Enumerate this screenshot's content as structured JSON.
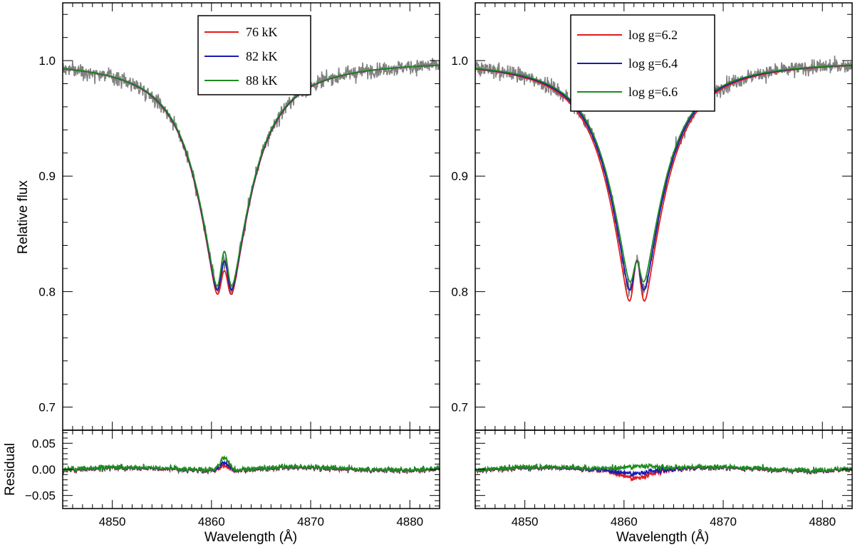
{
  "chart_data": [
    {
      "type": "line",
      "panel": "left-main",
      "ylabel": "Relative flux",
      "xlim": [
        4845,
        4883
      ],
      "ylim": [
        0.68,
        1.05
      ],
      "yticks": [
        0.7,
        0.8,
        0.9,
        1.0
      ],
      "ytick_labels": [
        "0.7",
        "0.8",
        "0.9",
        "1.0"
      ],
      "legend": {
        "placement": "top-center"
      },
      "observed": {
        "color": "#808080",
        "noise": 0.006
      },
      "series": [
        {
          "name": "76 kK",
          "color": "#e31a1c",
          "params": {
            "depth": 0.235,
            "core": 0.818
          }
        },
        {
          "name": "82 kK",
          "color": "#1a1ab5",
          "params": {
            "depth": 0.232,
            "core": 0.826
          }
        },
        {
          "name": "88 kK",
          "color": "#1f8a1f",
          "params": {
            "depth": 0.229,
            "core": 0.834
          }
        }
      ]
    },
    {
      "type": "line",
      "panel": "right-main",
      "xlim": [
        4845,
        4883
      ],
      "ylim": [
        0.68,
        1.05
      ],
      "yticks": [
        0.7,
        0.8,
        0.9,
        1.0
      ],
      "ytick_labels": [
        "0.7",
        "0.8",
        "0.9",
        "1.0"
      ],
      "legend": {
        "placement": "top-center"
      },
      "observed": {
        "color": "#808080",
        "noise": 0.006
      },
      "series": [
        {
          "name": "log g=6.2",
          "color": "#e31a1c",
          "params": {
            "depth": 0.245,
            "core": 0.826
          }
        },
        {
          "name": "log g=6.4",
          "color": "#1a1ab5",
          "params": {
            "depth": 0.232,
            "core": 0.826
          }
        },
        {
          "name": "log g=6.6",
          "color": "#1f8a1f",
          "params": {
            "depth": 0.222,
            "core": 0.826
          }
        }
      ]
    },
    {
      "type": "line",
      "panel": "left-residual",
      "xlabel": "Wavelength (Å)",
      "ylabel": "Residual",
      "xlim": [
        4845,
        4883
      ],
      "ylim": [
        -0.075,
        0.075
      ],
      "xticks": [
        4850,
        4860,
        4870,
        4880
      ],
      "xtick_labels": [
        "4850",
        "4860",
        "4870",
        "4880"
      ],
      "yticks": [
        -0.05,
        0.0,
        0.05
      ],
      "ytick_labels": [
        "−0.05",
        "0.00",
        "0.05"
      ],
      "series": [
        {
          "color": "#e31a1c",
          "params": {
            "bump": 0.01
          }
        },
        {
          "color": "#1a1ab5",
          "params": {
            "bump": 0.015
          }
        },
        {
          "color": "#1f8a1f",
          "params": {
            "bump": 0.024
          }
        }
      ]
    },
    {
      "type": "line",
      "panel": "right-residual",
      "xlabel": "Wavelength (Å)",
      "xlim": [
        4845,
        4883
      ],
      "ylim": [
        -0.075,
        0.075
      ],
      "xticks": [
        4850,
        4860,
        4870,
        4880
      ],
      "xtick_labels": [
        "4850",
        "4860",
        "4870",
        "4880"
      ],
      "series": [
        {
          "color": "#e31a1c",
          "params": {
            "dip": -0.014
          }
        },
        {
          "color": "#1a1ab5",
          "params": {
            "dip": -0.006
          }
        },
        {
          "color": "#1f8a1f",
          "params": {
            "dip": 0.003
          }
        }
      ]
    }
  ]
}
